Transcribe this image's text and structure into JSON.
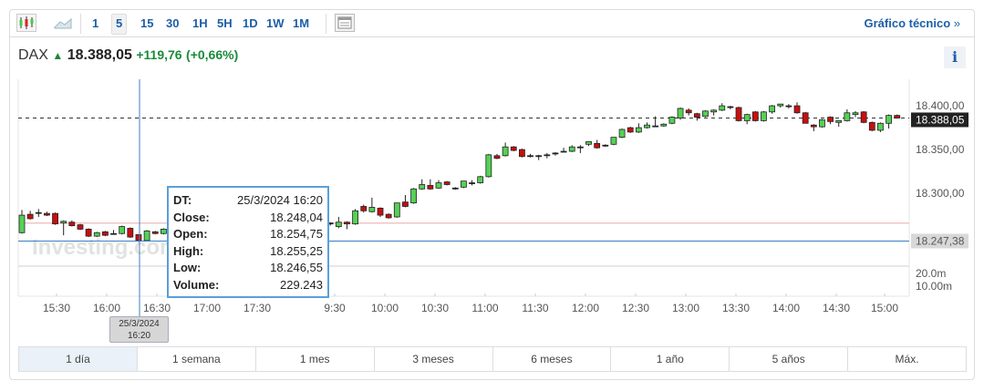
{
  "toolbar": {
    "chart_types": [
      {
        "icon": "candlestick-icon"
      },
      {
        "icon": "area-chart-icon"
      }
    ],
    "intervals": [
      "1",
      "5",
      "15",
      "30",
      "1H",
      "5H",
      "1D",
      "1W",
      "1M"
    ],
    "selected_interval": "5",
    "layout_icon": "table-layout-icon",
    "technical_chart_label": "Gráfico técnico",
    "technical_chart_arrow": "»"
  },
  "quote": {
    "symbol": "DAX",
    "direction_icon": "arrow-up-icon",
    "price": "18.388,05",
    "change": "+119,76",
    "change_pct": "(+0,66%)",
    "info_label": "i"
  },
  "chart_data": {
    "type": "candlestick",
    "colors": {
      "up": "#55d155",
      "down": "#c90f0f",
      "crosshair": "#3b7fc4",
      "prev_close_line": "#f0c4c4"
    },
    "y_ticks": [
      "18.400,00",
      "18.350,00",
      "18.300,00"
    ],
    "y_tick_values": [
      18400,
      18350,
      18300
    ],
    "ylim": [
      18225,
      18432
    ],
    "current_price": 18388.05,
    "current_price_label": "18.388,05",
    "crosshair_price": 18247.38,
    "crosshair_price_label": "18.247,38",
    "prev_close": 18268,
    "volume_ticks": [
      "20.0m",
      "10.00m"
    ],
    "x_ticks": [
      "15:30",
      "16:00",
      "16:30",
      "17:00",
      "17:30",
      "9:30",
      "10:00",
      "10:30",
      "11:00",
      "11:30",
      "12:00",
      "12:30",
      "13:00",
      "13:30",
      "14:00",
      "14:30",
      "15:00"
    ],
    "watermark": "Investing.com",
    "candles_ohlc": [
      [
        18257,
        18283,
        18256,
        18277
      ],
      [
        18278,
        18282,
        18272,
        18273
      ],
      [
        18280,
        18284,
        18275,
        18280
      ],
      [
        18279,
        18281,
        18276,
        18277
      ],
      [
        18279,
        18280,
        18266,
        18267
      ],
      [
        18268,
        18271,
        18254,
        18270
      ],
      [
        18269,
        18271,
        18264,
        18265
      ],
      [
        18266,
        18267,
        18260,
        18261
      ],
      [
        18261,
        18262,
        18252,
        18253
      ],
      [
        18253,
        18258,
        18252,
        18257
      ],
      [
        18258,
        18259,
        18253,
        18254
      ],
      [
        18256,
        18260,
        18255,
        18256
      ],
      [
        18256,
        18265,
        18255,
        18264
      ],
      [
        18262,
        18263,
        18251,
        18252
      ],
      [
        18254.75,
        18255.25,
        18246.55,
        18248.04
      ],
      [
        18248,
        18260,
        18247,
        18259
      ],
      [
        18258,
        18259,
        18255,
        18256
      ],
      [
        18256,
        18262,
        18255,
        18261
      ],
      [
        18261,
        18264,
        18258,
        18262
      ],
      [
        18262,
        18266,
        18260,
        18264
      ],
      [
        18264,
        18265,
        18259,
        18260
      ],
      [
        18260,
        18263,
        18258,
        18262
      ],
      [
        18262,
        18267,
        18261,
        18266
      ],
      [
        18266,
        18268,
        18262,
        18263
      ],
      [
        18263,
        18265,
        18260,
        18264
      ],
      [
        18264,
        18269,
        18263,
        18268
      ],
      [
        18268,
        18270,
        18264,
        18265
      ],
      [
        18265,
        18267,
        18262,
        18266
      ],
      [
        18266,
        18268,
        18263,
        18264
      ],
      [
        18264,
        18266,
        18260,
        18261
      ],
      [
        18261,
        18265,
        18259,
        18264
      ],
      [
        18264,
        18267,
        18262,
        18266
      ],
      [
        18266,
        18269,
        18264,
        18265
      ],
      [
        18265,
        18268,
        18263,
        18267
      ],
      [
        18267,
        18270,
        18265,
        18266
      ],
      [
        18266,
        18268,
        18262,
        18264
      ],
      [
        18264,
        18268,
        18263,
        18267
      ],
      [
        18267,
        18269,
        18265,
        18268
      ],
      [
        18264,
        18275,
        18262,
        18269
      ],
      [
        18269,
        18270,
        18261,
        18267
      ],
      [
        18267,
        18284,
        18266,
        18282
      ],
      [
        18287,
        18289,
        18280,
        18282
      ],
      [
        18281,
        18297,
        18280,
        18286
      ],
      [
        18285,
        18286,
        18275,
        18277
      ],
      [
        18278,
        18279,
        18273,
        18274
      ],
      [
        18275,
        18291,
        18274,
        18291
      ],
      [
        18292,
        18300,
        18286,
        18287
      ],
      [
        18291,
        18308,
        18290,
        18307
      ],
      [
        18307,
        18318,
        18306,
        18312
      ],
      [
        18311,
        18318,
        18306,
        18307
      ],
      [
        18308,
        18317,
        18307,
        18314
      ],
      [
        18315,
        18316,
        18311,
        18312
      ],
      [
        18308,
        18309,
        18306,
        18308
      ],
      [
        18309,
        18316,
        18308,
        18316
      ],
      [
        18314,
        18317,
        18311,
        18314
      ],
      [
        18314,
        18322,
        18313,
        18321
      ],
      [
        18321,
        18347,
        18320,
        18346
      ],
      [
        18345,
        18347,
        18341,
        18342
      ],
      [
        18345,
        18360,
        18344,
        18355
      ],
      [
        18355,
        18356,
        18350,
        18351
      ],
      [
        18352,
        18353,
        18343,
        18344
      ],
      [
        18345,
        18347,
        18343,
        18345
      ],
      [
        18345,
        18346,
        18340,
        18345
      ],
      [
        18346,
        18348,
        18342,
        18346
      ],
      [
        18348,
        18349,
        18345,
        18348
      ],
      [
        18350,
        18354,
        18349,
        18350
      ],
      [
        18350,
        18357,
        18349,
        18355
      ],
      [
        18355,
        18357,
        18348,
        18355
      ],
      [
        18358,
        18361,
        18356,
        18361
      ],
      [
        18359,
        18363,
        18353,
        18354
      ],
      [
        18357,
        18358,
        18355,
        18357
      ],
      [
        18358,
        18366,
        18357,
        18366
      ],
      [
        18366,
        18376,
        18365,
        18375
      ],
      [
        18377,
        18378,
        18371,
        18372
      ],
      [
        18372,
        18382,
        18371,
        18377
      ],
      [
        18377,
        18383,
        18376,
        18380
      ],
      [
        18379,
        18390,
        18378,
        18379
      ],
      [
        18379,
        18382,
        18378,
        18381
      ],
      [
        18382,
        18390,
        18381,
        18389
      ],
      [
        18388,
        18400,
        18386,
        18399
      ],
      [
        18397,
        18399,
        18391,
        18394
      ],
      [
        18393,
        18394,
        18385,
        18389
      ],
      [
        18390,
        18397,
        18389,
        18396
      ],
      [
        18395,
        18398,
        18391,
        18397
      ],
      [
        18397,
        18405,
        18396,
        18402
      ],
      [
        18401,
        18402,
        18398,
        18401
      ],
      [
        18400,
        18401,
        18384,
        18385
      ],
      [
        18385,
        18393,
        18381,
        18392
      ],
      [
        18395,
        18396,
        18384,
        18385
      ],
      [
        18385,
        18396,
        18384,
        18395
      ],
      [
        18395,
        18403,
        18393,
        18402
      ],
      [
        18402,
        18404,
        18400,
        18404
      ],
      [
        18402,
        18404,
        18399,
        18402
      ],
      [
        18402,
        18406,
        18393,
        18394
      ],
      [
        18394,
        18395,
        18382,
        18382
      ],
      [
        18380,
        18381,
        18373,
        18378
      ],
      [
        18378,
        18387,
        18377,
        18386
      ],
      [
        18389,
        18390,
        18381,
        18384
      ],
      [
        18383,
        18385,
        18378,
        18385
      ],
      [
        18385,
        18398,
        18384,
        18394
      ],
      [
        18392,
        18396,
        18389,
        18394
      ],
      [
        18395,
        18396,
        18382,
        18383
      ],
      [
        18383,
        18384,
        18373,
        18374
      ],
      [
        18374,
        18383,
        18372,
        18382
      ],
      [
        18382,
        18392,
        18376,
        18391
      ],
      [
        18391,
        18392,
        18388,
        18388.05
      ]
    ]
  },
  "crosshair": {
    "date_label_line1": "25/3/2024",
    "date_label_line2": "16:20"
  },
  "tooltip": {
    "rows": [
      {
        "key": "DT:",
        "value": "25/3/2024 16:20"
      },
      {
        "key": "Close:",
        "value": "18.248,04"
      },
      {
        "key": "Open:",
        "value": "18.254,75"
      },
      {
        "key": "High:",
        "value": "18.255,25"
      },
      {
        "key": "Low:",
        "value": "18.246,55"
      },
      {
        "key": "Volume:",
        "value": "229.243"
      }
    ]
  },
  "ranges": [
    "1 día",
    "1 semana",
    "1 mes",
    "3 meses",
    "6 meses",
    "1 año",
    "5 años",
    "Máx."
  ],
  "selected_range": "1 día"
}
